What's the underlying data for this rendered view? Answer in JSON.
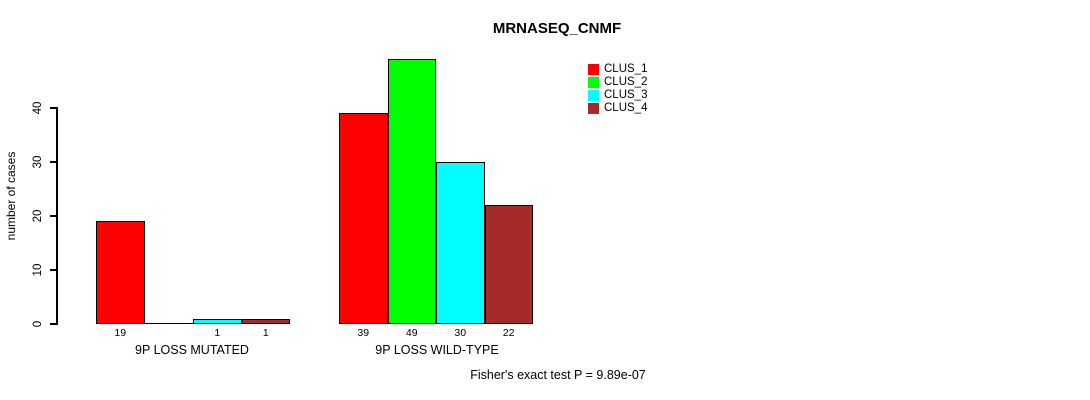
{
  "chart_data": {
    "type": "bar",
    "title": "MRNASEQ_CNMF",
    "xlabel": "",
    "ylabel": "number of cases",
    "ylim": [
      0,
      40
    ],
    "yticks": [
      0,
      10,
      20,
      30,
      40
    ],
    "grid": false,
    "legend_position": "top-right",
    "categories": [
      "9P LOSS MUTATED",
      "9P LOSS WILD-TYPE"
    ],
    "series": [
      {
        "name": "CLUS_1",
        "color": "#FF0000",
        "values": [
          19,
          39
        ]
      },
      {
        "name": "CLUS_2",
        "color": "#00FF00",
        "values": [
          0,
          49
        ]
      },
      {
        "name": "CLUS_3",
        "color": "#00FFFF",
        "values": [
          1,
          30
        ]
      },
      {
        "name": "CLUS_4",
        "color": "#A52A2A",
        "values": [
          1,
          22
        ]
      }
    ],
    "bar_value_labels": [
      [
        19,
        null,
        1,
        1
      ],
      [
        39,
        49,
        30,
        22
      ]
    ],
    "annotation": "Fisher's exact test P = 9.89e-07"
  }
}
